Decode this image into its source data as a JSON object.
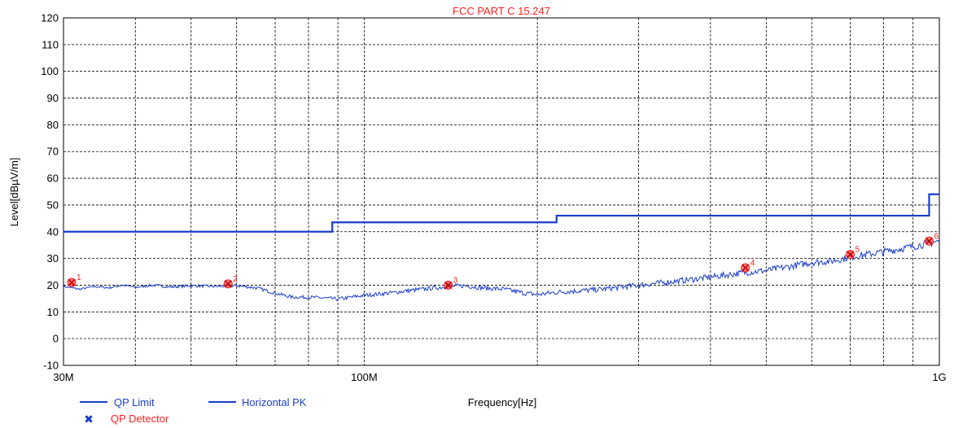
{
  "chart_data": {
    "type": "line",
    "title": "FCC PART C 15.247",
    "xlabel": "Frequency[Hz]",
    "ylabel": "Level[dBµV/m]",
    "xscale": "log",
    "xlim": [
      30000000,
      1000000000
    ],
    "ylim": [
      -10,
      120
    ],
    "x_ticks": [
      {
        "value": 30000000,
        "label": "30M"
      },
      {
        "value": 100000000,
        "label": "100M"
      },
      {
        "value": 1000000000,
        "label": "1G"
      }
    ],
    "y_ticks": [
      -10,
      0,
      10,
      20,
      30,
      40,
      50,
      60,
      70,
      80,
      90,
      100,
      110,
      120
    ],
    "grid": true,
    "colors": {
      "title": "#ff2020",
      "limit": "#1a3ec8",
      "trace": "#1a3ec8",
      "marker": "#ff2020"
    },
    "series": [
      {
        "name": "QP Limit",
        "x": [
          30000000,
          88000000,
          88000000,
          216000000,
          216000000,
          960000000,
          960000000,
          1000000000
        ],
        "values": [
          40,
          40,
          43.5,
          43.5,
          46,
          46,
          54,
          54
        ]
      },
      {
        "name": "Horizontal PK",
        "x": [
          30000000,
          32000000,
          34000000,
          36000000,
          38000000,
          40000000,
          43000000,
          46000000,
          50000000,
          55000000,
          60000000,
          65000000,
          70000000,
          75000000,
          80000000,
          85000000,
          90000000,
          95000000,
          100000000,
          110000000,
          120000000,
          130000000,
          140000000,
          150000000,
          160000000,
          175000000,
          190000000,
          200000000,
          220000000,
          240000000,
          260000000,
          300000000,
          350000000,
          400000000,
          450000000,
          500000000,
          550000000,
          600000000,
          650000000,
          700000000,
          750000000,
          800000000,
          850000000,
          900000000,
          950000000,
          1000000000
        ],
        "values": [
          19.5,
          18.5,
          19.5,
          19.0,
          20.0,
          19.2,
          20.0,
          19.3,
          19.8,
          19.5,
          19.8,
          19.0,
          17.0,
          15.5,
          15.5,
          15.2,
          14.8,
          15.5,
          16.2,
          17.0,
          18.0,
          18.8,
          19.5,
          19.8,
          19.0,
          18.5,
          17.0,
          16.5,
          17.5,
          18.0,
          18.5,
          20.0,
          21.5,
          23.0,
          24.5,
          25.5,
          27.0,
          28.5,
          29.0,
          30.5,
          31.5,
          32.5,
          33.5,
          34.5,
          35.5,
          36.5
        ]
      }
    ],
    "markers": {
      "name": "QP Detector",
      "points": [
        {
          "label": "1",
          "x": 31000000,
          "y": 21.0
        },
        {
          "label": "2",
          "x": 58000000,
          "y": 20.5
        },
        {
          "label": "3",
          "x": 140000000,
          "y": 20.0
        },
        {
          "label": "4",
          "x": 460000000,
          "y": 26.5
        },
        {
          "label": "5",
          "x": 700000000,
          "y": 31.5
        },
        {
          "label": "6",
          "x": 960000000,
          "y": 36.5
        }
      ]
    },
    "legend": {
      "placement": "bottom-left",
      "entries": [
        "QP Limit",
        "Horizontal PK",
        "QP Detector"
      ]
    }
  }
}
